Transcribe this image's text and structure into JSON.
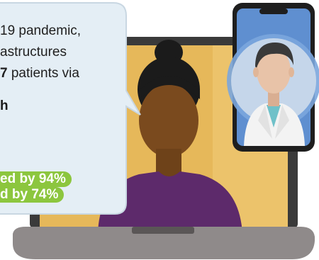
{
  "bubble": {
    "lines": [
      {
        "before": "19 pandemic,",
        "bold": "",
        "after": ""
      },
      {
        "before": "astructures",
        "bold": "",
        "after": ""
      },
      {
        "before": "",
        "bold": "7",
        "after": " patients via"
      }
    ],
    "bold_fragment": "h"
  },
  "stats": [
    {
      "text": "ed by 94%"
    },
    {
      "text": "d by 74%"
    }
  ],
  "colors": {
    "bubble": "#e4eef5",
    "bubble_border": "#c9d7e2",
    "screen": "#e6b85a",
    "laptop_frame": "#3a3a3a",
    "laptop_base": "#8f8a8a",
    "sweater": "#5d2a6b",
    "skin": "#7a4a1e",
    "hair": "#1b1b1b",
    "stat_bg": "#8cc63e",
    "phone_frame": "#1e1e1e",
    "phone_bg": "#5f8fd0",
    "doctor_skin": "#e8c3a8",
    "doctor_coat": "#f3f3f3",
    "doctor_hair": "#3a3a3a",
    "scrubs": "#6fc1c9"
  },
  "icons": [
    "doctor-avatar-icon",
    "patient-avatar-icon",
    "laptop-icon",
    "smartphone-icon"
  ]
}
